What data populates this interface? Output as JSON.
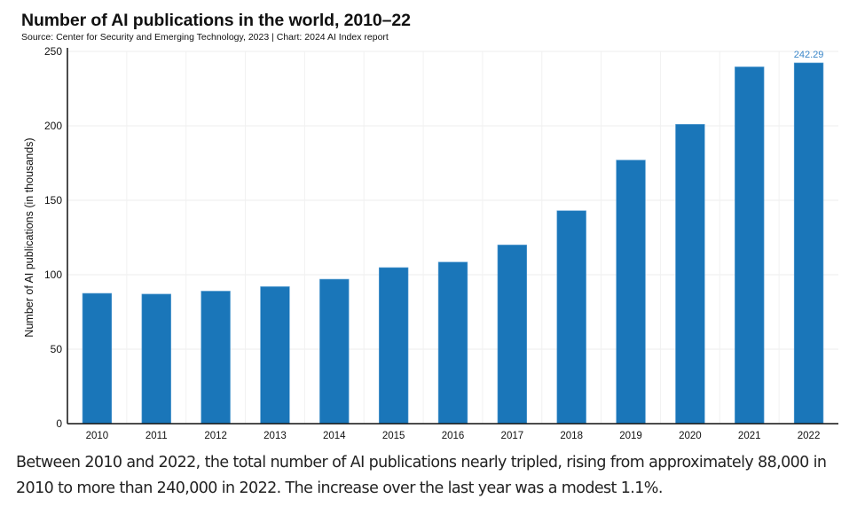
{
  "chart_data": {
    "type": "bar",
    "title": "Number of AI publications in the world, 2010–22",
    "subtitle": "Source: Center for Security and Emerging Technology, 2023 | Chart: 2024 AI Index report",
    "xlabel": "",
    "ylabel": "Number of AI publications (in thousands)",
    "categories": [
      "2010",
      "2011",
      "2012",
      "2013",
      "2014",
      "2015",
      "2016",
      "2017",
      "2018",
      "2019",
      "2020",
      "2021",
      "2022"
    ],
    "values": [
      87.5,
      87.0,
      89.0,
      92.0,
      97.0,
      104.8,
      108.5,
      120.0,
      143.0,
      177.0,
      201.0,
      239.6,
      242.29
    ],
    "data_labels": [
      {
        "category": "2022",
        "text": "242.29"
      }
    ],
    "ylim": [
      0,
      250
    ],
    "yticks": [
      0,
      50,
      100,
      150,
      200,
      250
    ],
    "grid": true,
    "legend": "none",
    "bar_color": "#1a76b9",
    "label_color": "#3a86c8"
  },
  "caption": "Between 2010 and 2022, the total number of AI publications nearly tripled, rising from approximately 88,000 in 2010 to more than 240,000 in 2022. The increase over the last year was a modest 1.1%."
}
